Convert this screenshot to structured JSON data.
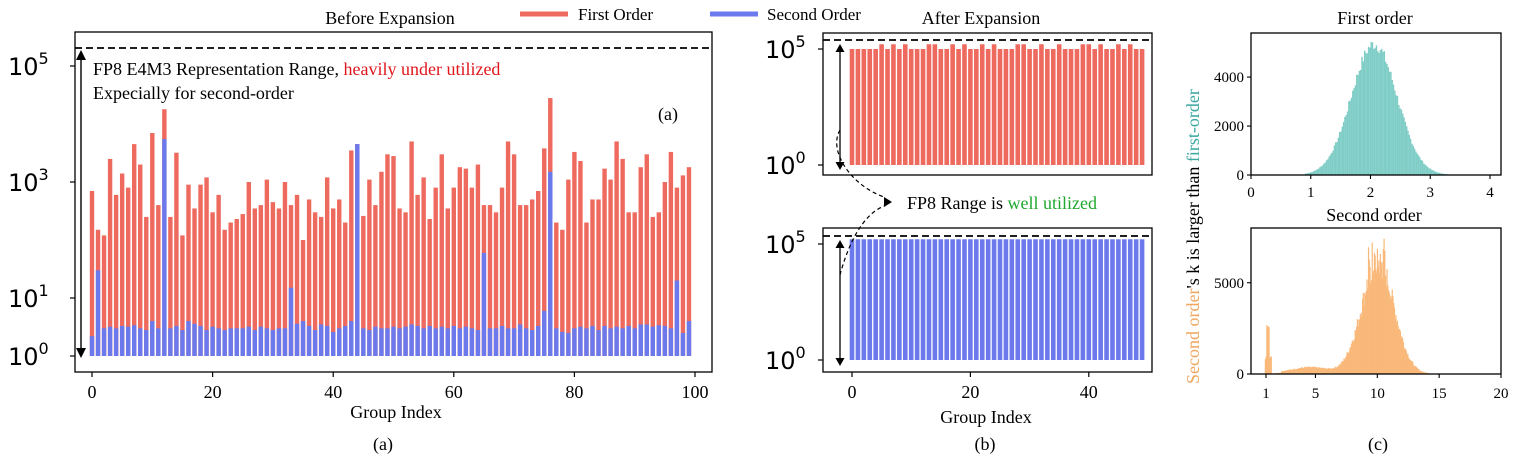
{
  "legend": {
    "first_label": "First Order",
    "second_label": "Second Order",
    "first_color": "#ee6a5f",
    "second_color": "#6b79ec"
  },
  "panel_a": {
    "title": "Before Expansion",
    "xlabel": "Group Index",
    "caption": "(a)",
    "inner_label": "(a)",
    "annotation_line1_prefix": "FP8 E4M3 Representation Range, ",
    "annotation_line1_highlight": "heavily under utilized",
    "annotation_line2": "Expecially for second-order",
    "highlight_color": "#e0161c",
    "xticks": [
      "0",
      "20",
      "40",
      "60",
      "80",
      "100"
    ],
    "yticks": [
      {
        "base": "10",
        "exp": "5"
      },
      {
        "base": "10",
        "exp": "3"
      },
      {
        "base": "10",
        "exp": "1"
      },
      {
        "base": "10",
        "exp": "0"
      }
    ]
  },
  "panel_b": {
    "title": "After Expansion",
    "xlabel": "Group Index",
    "caption": "(b)",
    "annotation_prefix": "FP8 Range is ",
    "annotation_highlight": "well utilized",
    "highlight_color": "#1fa82d",
    "xticks": [
      "0",
      "20",
      "40"
    ],
    "yticks_top": [
      {
        "base": "10",
        "exp": "5"
      },
      {
        "base": "10",
        "exp": "0"
      }
    ],
    "yticks_bottom": [
      {
        "base": "10",
        "exp": "5"
      },
      {
        "base": "10",
        "exp": "0"
      }
    ]
  },
  "panel_c": {
    "caption": "(c)",
    "ylabel_prefix": "Second order",
    "ylabel_middle": "'s k is larger than ",
    "ylabel_suffix": "first-order",
    "prefix_color": "#f0a65e",
    "suffix_color": "#3aa7a0",
    "top_title": "First order",
    "bottom_title": "Second order",
    "top_xticks": [
      "0",
      "1",
      "2",
      "3",
      "4"
    ],
    "top_yticks": [
      "0",
      "2000",
      "4000"
    ],
    "bottom_xticks": [
      "1",
      "5",
      "10",
      "15",
      "20"
    ],
    "bottom_yticks": [
      "0",
      "5000"
    ],
    "top_color": "#7fcdc6",
    "bottom_color": "#f9b97a"
  },
  "chart_data": [
    {
      "type": "bar",
      "title": "Before Expansion",
      "xlabel": "Group Index",
      "ylabel": "",
      "yscale": "log",
      "ylim": [
        0.8,
        300000
      ],
      "reference_line": 240000,
      "x": [
        0,
        1,
        2,
        3,
        4,
        5,
        6,
        7,
        8,
        9,
        10,
        11,
        12,
        13,
        14,
        15,
        16,
        17,
        18,
        19,
        20,
        21,
        22,
        23,
        24,
        25,
        26,
        27,
        28,
        29,
        30,
        31,
        32,
        33,
        34,
        35,
        36,
        37,
        38,
        39,
        40,
        41,
        42,
        43,
        44,
        45,
        46,
        47,
        48,
        49,
        50,
        51,
        52,
        53,
        54,
        55,
        56,
        57,
        58,
        59,
        60,
        61,
        62,
        63,
        64,
        65,
        66,
        67,
        68,
        69,
        70,
        71,
        72,
        73,
        74,
        75,
        76,
        77,
        78,
        79,
        80,
        81,
        82,
        83,
        84,
        85,
        86,
        87,
        88,
        89,
        90,
        91,
        92,
        93,
        94,
        95,
        96,
        97,
        98,
        99
      ],
      "series": [
        {
          "name": "First Order",
          "values": [
            700,
            150,
            120,
            2500,
            600,
            1400,
            800,
            4500,
            2000,
            250,
            7000,
            400,
            18000,
            250,
            3200,
            120,
            900,
            350,
            900,
            1200,
            300,
            600,
            150,
            200,
            230,
            280,
            1000,
            350,
            400,
            1100,
            450,
            350,
            1000,
            400,
            600,
            100,
            500,
            300,
            250,
            1200,
            350,
            500,
            200,
            3500,
            4500,
            260,
            1100,
            400,
            1500,
            3000,
            2800,
            350,
            300,
            5000,
            600,
            1200,
            230,
            800,
            3000,
            350,
            800,
            1800,
            1700,
            800,
            2000,
            400,
            400,
            300,
            800,
            5000,
            3000,
            400,
            400,
            500,
            700,
            3800,
            28000,
            200,
            150,
            1100,
            3300,
            2300,
            200,
            500,
            500,
            1700,
            1100,
            5000,
            2500,
            300,
            300,
            1800,
            3000,
            250,
            300,
            1000,
            3300,
            800,
            1300,
            1800
          ]
        },
        {
          "name": "Second Order",
          "values": [
            2.2,
            30,
            3,
            3.2,
            3,
            3.3,
            3.2,
            3.4,
            3,
            2.8,
            4,
            3,
            5500,
            3,
            3.3,
            2.8,
            4,
            3.6,
            3.3,
            2.8,
            3.2,
            3,
            2.8,
            3,
            3,
            3,
            3.2,
            2.8,
            3.2,
            3,
            2.8,
            3,
            3,
            15,
            3.6,
            4,
            3.3,
            2.8,
            3.5,
            3.3,
            2.6,
            3,
            3.3,
            4,
            4500,
            3,
            2.8,
            3.2,
            3,
            3,
            3.2,
            3,
            3.2,
            3.5,
            3.3,
            3,
            3.3,
            3,
            3.2,
            3,
            3.3,
            3,
            3.2,
            3,
            2.8,
            60,
            3,
            3,
            3.3,
            3,
            3,
            3.5,
            3,
            2.8,
            3.3,
            6,
            1500,
            3,
            2.6,
            2.5,
            3,
            3.2,
            3,
            3.3,
            2.8,
            3.3,
            3,
            3.2,
            3,
            3.3,
            3,
            3.5,
            3.5,
            3.2,
            3.4,
            3.3,
            3,
            20,
            2.5,
            4
          ]
        }
      ]
    },
    {
      "type": "bar",
      "title": "After Expansion",
      "xlabel": "",
      "yscale": "log",
      "ylim": [
        0.8,
        300000
      ],
      "reference_line": 240000,
      "series": [
        {
          "name": "First Order",
          "values": [
            100000,
            100000,
            100000,
            100000,
            100000,
            160000,
            100000,
            160000,
            100000,
            160000,
            100000,
            100000,
            100000,
            160000,
            160000,
            100000,
            100000,
            160000,
            100000,
            160000,
            100000,
            100000,
            160000,
            100000,
            160000,
            100000,
            100000,
            100000,
            160000,
            160000,
            100000,
            100000,
            160000,
            100000,
            100000,
            160000,
            100000,
            100000,
            100000,
            160000,
            160000,
            100000,
            160000,
            100000,
            100000,
            160000,
            100000,
            160000,
            100000,
            100000
          ]
        }
      ]
    },
    {
      "type": "bar",
      "title": "",
      "xlabel": "Group Index",
      "yscale": "log",
      "ylim": [
        0.8,
        300000
      ],
      "reference_line": 240000,
      "series": [
        {
          "name": "Second Order",
          "values": [
            160000,
            160000,
            160000,
            160000,
            160000,
            160000,
            160000,
            160000,
            160000,
            160000,
            160000,
            160000,
            160000,
            160000,
            160000,
            160000,
            160000,
            160000,
            160000,
            160000,
            160000,
            160000,
            160000,
            160000,
            160000,
            160000,
            160000,
            160000,
            160000,
            160000,
            160000,
            160000,
            160000,
            160000,
            160000,
            160000,
            160000,
            160000,
            160000,
            160000,
            160000,
            160000,
            160000,
            160000,
            160000,
            160000,
            160000,
            160000,
            160000,
            160000
          ]
        }
      ]
    },
    {
      "type": "bar",
      "title": "First order",
      "xlim": [
        0,
        4.2
      ],
      "ylim": [
        0,
        5800
      ],
      "distribution": {
        "kind": "gaussian",
        "center": 2.05,
        "sigma": 0.38,
        "peak": 5400
      }
    },
    {
      "type": "bar",
      "title": "Second order",
      "xlim": [
        0,
        20
      ],
      "ylim": [
        0,
        8000
      ],
      "distribution": {
        "kind": "mixture",
        "spike_at": 1.1,
        "spike_height": 3000,
        "bump_center": 4.5,
        "bump_height": 300,
        "main_center": 10,
        "main_sigma": 1.3,
        "main_peak": 6300
      }
    }
  ]
}
